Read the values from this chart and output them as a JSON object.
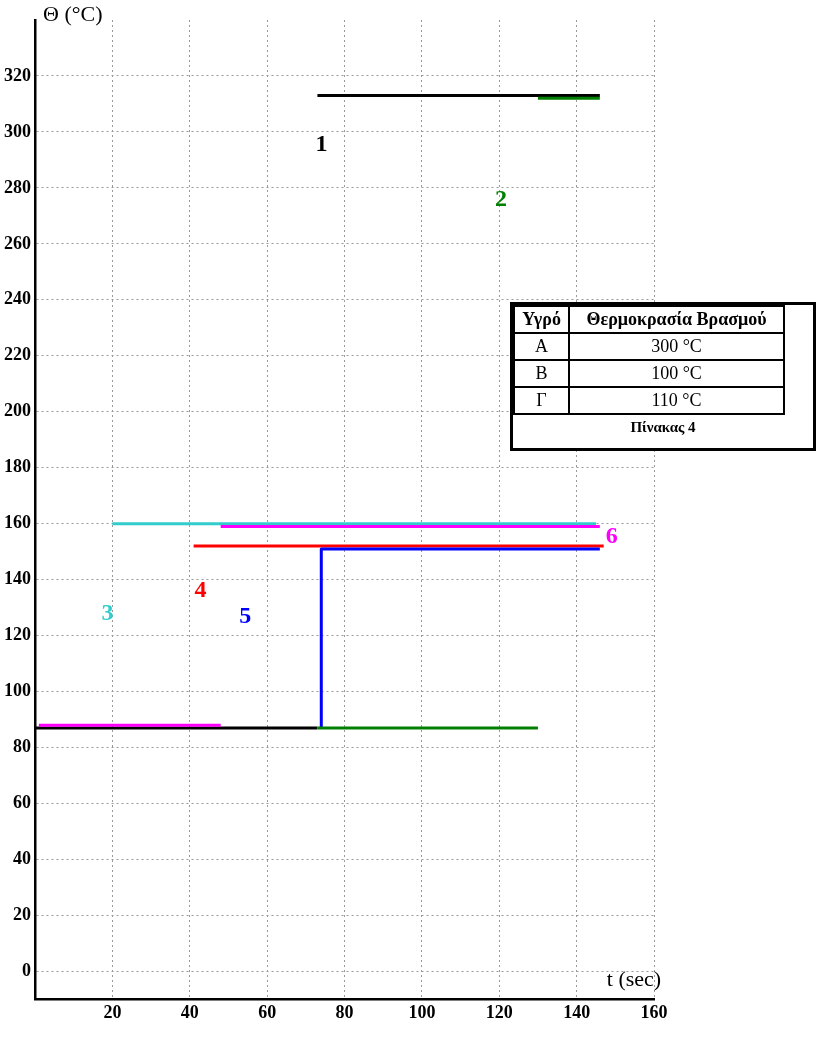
{
  "chart_data": [
    {
      "type": "line",
      "xlabel": "t (sec)",
      "ylabel": "Θ (°C)",
      "xlim": [
        0,
        160
      ],
      "xticks": [
        20,
        40,
        60,
        80,
        100,
        120,
        140,
        160
      ],
      "ylim": [
        -10,
        340
      ],
      "yticks": [
        0,
        20,
        40,
        60,
        80,
        100,
        120,
        140,
        160,
        180,
        200,
        220,
        240,
        260,
        280,
        300,
        320
      ],
      "grid": true,
      "legend": false,
      "marker": "none",
      "line_style": "solid",
      "series": [
        {
          "name": "1",
          "color": "#000000",
          "x": [
            73,
            146
          ],
          "values": [
            313,
            313
          ]
        },
        {
          "name": "2",
          "color": "#008000",
          "x": [
            130,
            146
          ],
          "values": [
            312,
            312
          ]
        },
        {
          "name": "3",
          "color": "#33cccc",
          "x": [
            20,
            145
          ],
          "values": [
            160,
            160
          ]
        },
        {
          "name": "4",
          "color": "#ff0000",
          "x": [
            41,
            147
          ],
          "values": [
            152,
            152
          ]
        },
        {
          "name": "5",
          "color": "#0000ff",
          "x": [
            74,
            74,
            146
          ],
          "values": [
            87,
            151,
            151
          ]
        },
        {
          "name": "6",
          "color": "#ff00ff",
          "x": [
            48,
            146
          ],
          "values": [
            159,
            159
          ]
        },
        {
          "color": "#000000",
          "x": [
            0,
            73
          ],
          "values": [
            87,
            87
          ]
        },
        {
          "color": "#008000",
          "x": [
            73,
            130
          ],
          "values": [
            87,
            87
          ]
        },
        {
          "color": "#ff00ff",
          "x": [
            1,
            48
          ],
          "values": [
            88,
            88
          ]
        }
      ]
    },
    {
      "type": "other",
      "annotations": [
        "Υγρό",
        "Θερμοκρασία Βρασμού",
        "Α",
        "300 °C",
        "Β",
        "100 °C",
        "Γ",
        "110 °C",
        "Πίνακας 4"
      ]
    }
  ]
}
